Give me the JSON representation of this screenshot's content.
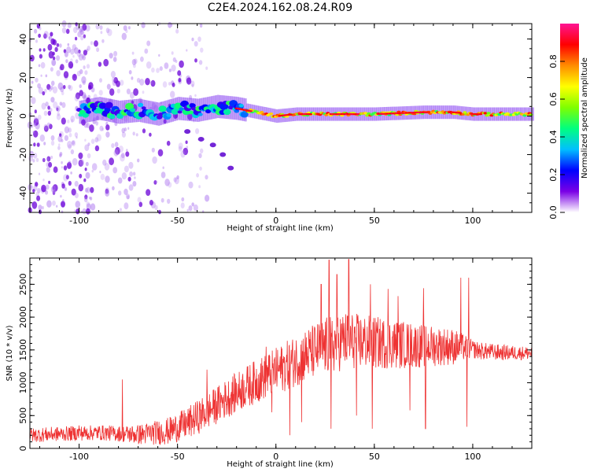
{
  "figure_title": "C2E4.2024.162.08.24.R09",
  "chart_data": [
    {
      "type": "heatmap",
      "xlabel": "Height of straight line (km)",
      "ylabel": "Frequency (Hz)",
      "xlim": [
        -125,
        130
      ],
      "ylim": [
        -50,
        48
      ],
      "xticks": [
        -100,
        -50,
        0,
        50,
        100
      ],
      "yticks": [
        -40,
        -20,
        0,
        20,
        40
      ],
      "colorbar": {
        "label": "Normalized spectral amplitude",
        "range": [
          0,
          1
        ],
        "ticks": [
          "0.0",
          "0.2",
          "0.4",
          "0.6",
          "0.8"
        ],
        "colormap": [
          "#ffffff",
          "#7a00e6",
          "#0000ff",
          "#00bfff",
          "#00ff7f",
          "#7fff00",
          "#ffff00",
          "#ff8c00",
          "#ff0000",
          "#ff1493"
        ]
      },
      "ridge": [
        [
          -100,
          2
        ],
        [
          -90,
          4
        ],
        [
          -80,
          2
        ],
        [
          -70,
          3
        ],
        [
          -60,
          1
        ],
        [
          -50,
          4
        ],
        [
          -40,
          3
        ],
        [
          -30,
          5
        ],
        [
          -20,
          4
        ],
        [
          -10,
          2
        ],
        [
          0,
          0
        ],
        [
          10,
          1
        ],
        [
          25,
          1
        ],
        [
          50,
          1
        ],
        [
          75,
          2
        ],
        [
          90,
          2
        ],
        [
          100,
          1
        ],
        [
          130,
          1
        ]
      ]
    },
    {
      "type": "line",
      "xlabel": "Height of straight line (km)",
      "ylabel": "SNR (10 * v/v)",
      "xlim": [
        -125,
        130
      ],
      "ylim": [
        0,
        2900
      ],
      "xticks": [
        -100,
        -50,
        0,
        50,
        100
      ],
      "yticks": [
        0,
        500,
        1000,
        1500,
        2000,
        2500
      ],
      "color": "#ee3333",
      "envelope": [
        [
          -125,
          200
        ],
        [
          -110,
          220
        ],
        [
          -90,
          240
        ],
        [
          -70,
          210
        ],
        [
          -55,
          260
        ],
        [
          -45,
          380
        ],
        [
          -35,
          560
        ],
        [
          -25,
          760
        ],
        [
          -15,
          940
        ],
        [
          -5,
          1100
        ],
        [
          5,
          1250
        ],
        [
          15,
          1420
        ],
        [
          25,
          1550
        ],
        [
          35,
          1650
        ],
        [
          45,
          1620
        ],
        [
          55,
          1600
        ],
        [
          65,
          1580
        ],
        [
          75,
          1560
        ],
        [
          85,
          1560
        ],
        [
          95,
          1540
        ],
        [
          105,
          1480
        ],
        [
          115,
          1460
        ],
        [
          130,
          1450
        ]
      ],
      "noise": [
        [
          -125,
          110
        ],
        [
          -80,
          120
        ],
        [
          -40,
          260
        ],
        [
          0,
          360
        ],
        [
          30,
          460
        ],
        [
          60,
          380
        ],
        [
          90,
          280
        ],
        [
          100,
          140
        ],
        [
          130,
          100
        ]
      ],
      "spikes": [
        [
          -78,
          1050
        ],
        [
          -35,
          1200
        ],
        [
          -5,
          1550
        ],
        [
          23,
          2500
        ],
        [
          27,
          2870
        ],
        [
          31,
          2650
        ],
        [
          37,
          2880
        ],
        [
          48,
          2500
        ],
        [
          57,
          2430
        ],
        [
          62,
          2320
        ],
        [
          75,
          2440
        ],
        [
          94,
          2600
        ],
        [
          98,
          2600
        ],
        [
          -100,
          350
        ],
        [
          -2,
          550
        ],
        [
          7,
          200
        ],
        [
          13,
          400
        ],
        [
          28,
          300
        ],
        [
          41,
          500
        ],
        [
          49,
          300
        ],
        [
          57,
          430
        ],
        [
          68,
          580
        ],
        [
          76,
          300
        ],
        [
          97,
          330
        ]
      ]
    }
  ]
}
